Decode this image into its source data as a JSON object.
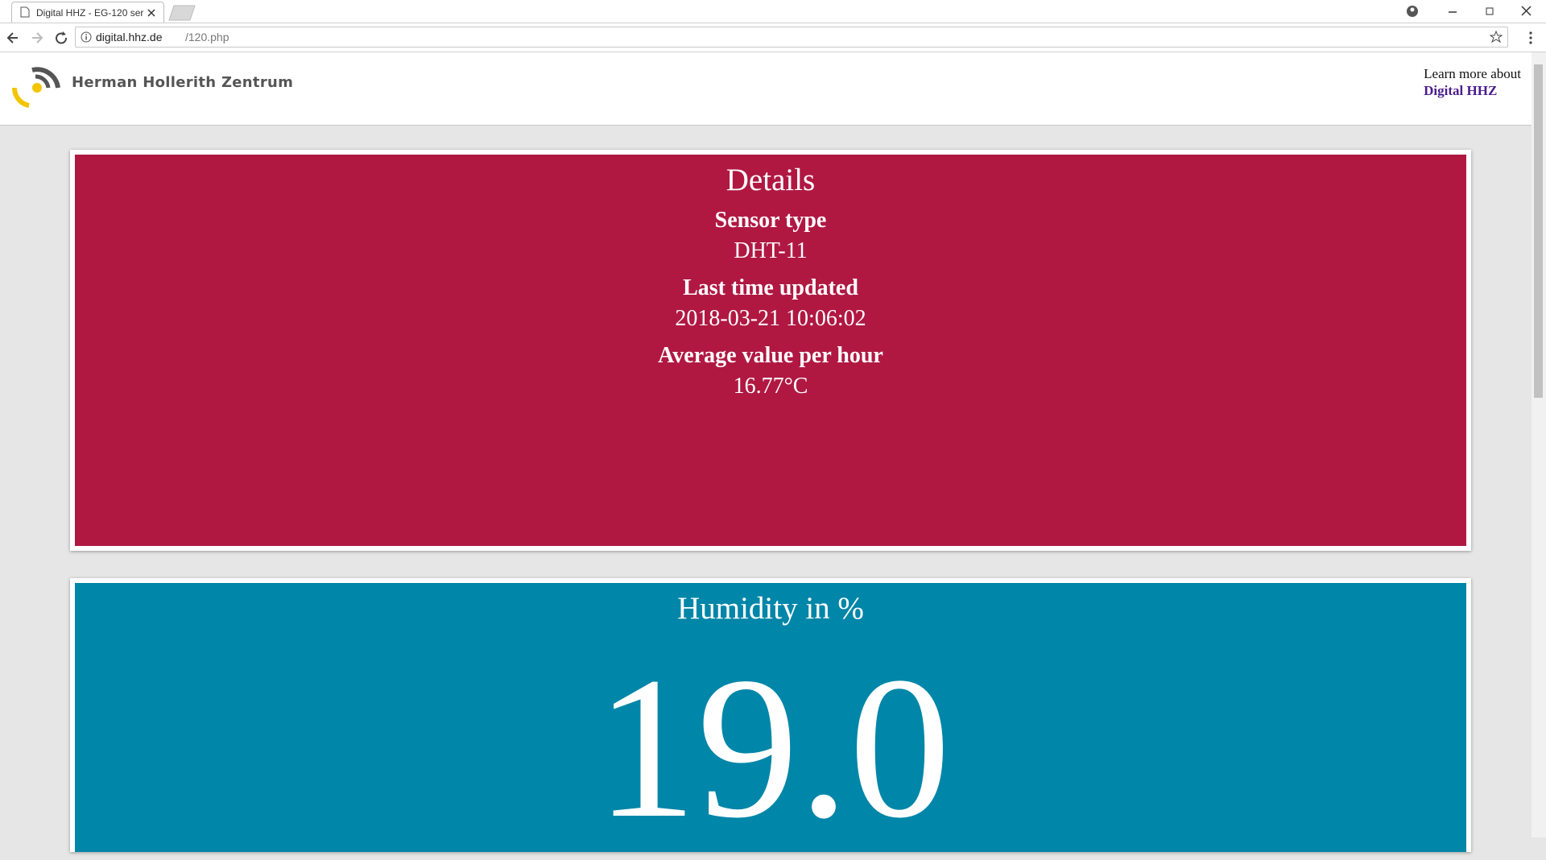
{
  "browser": {
    "tab_title": "Digital HHZ - EG-120 ser",
    "url_host": "digital.hhz.de",
    "url_path": "/120.php"
  },
  "header": {
    "logo_text": "Herman Hollerith Zentrum",
    "learn_more": "Learn more about",
    "link": "Digital HHZ"
  },
  "details": {
    "title": "Details",
    "items": [
      {
        "label": "Sensor type",
        "value": "DHT-11"
      },
      {
        "label": "Last time updated",
        "value": "2018-03-21 10:06:02"
      },
      {
        "label": "Average value per hour",
        "value": "16.77°C"
      }
    ]
  },
  "humidity": {
    "title": "Humidity in %",
    "value": "19.0"
  }
}
